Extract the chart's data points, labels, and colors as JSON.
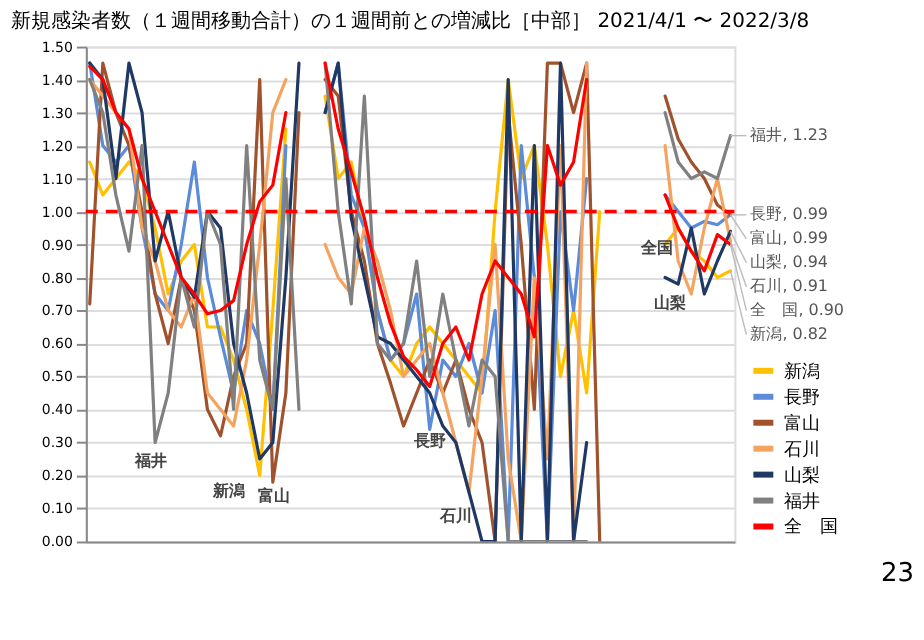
{
  "chart_data": {
    "type": "line",
    "title": "新規感染者数（１週間移動合計）の１週間前との増減比［中部］ 2021/4/1 〜 2022/3/8",
    "categories": [
      null,
      null,
      null,
      null,
      null,
      null,
      null,
      null,
      null,
      null,
      null,
      null,
      null,
      null,
      null,
      null,
      null,
      null,
      null,
      null,
      null,
      null,
      null,
      null,
      null,
      null,
      null,
      null,
      null,
      null,
      null,
      null,
      null,
      null,
      null,
      null,
      null,
      null,
      null,
      null,
      null,
      null,
      null,
      null,
      null,
      null,
      null,
      null,
      null,
      null
    ],
    "ylim": [
      0,
      1.5
    ],
    "yticks": [
      {
        "value": 0,
        "label": "0.00"
      },
      {
        "value": 0.1,
        "label": "0.10"
      },
      {
        "value": 0.2,
        "label": "0.20"
      },
      {
        "value": 0.3,
        "label": "0.30"
      },
      {
        "value": 0.4,
        "label": "0.40"
      },
      {
        "value": 0.5,
        "label": "0.50"
      },
      {
        "value": 0.6,
        "label": "0.60"
      },
      {
        "value": 0.7,
        "label": "0.70"
      },
      {
        "value": 0.8,
        "label": "0.80"
      },
      {
        "value": 0.9,
        "label": "0.90"
      },
      {
        "value": 1.0,
        "label": "1.00"
      },
      {
        "value": 1.1,
        "label": "1.10"
      },
      {
        "value": 1.2,
        "label": "1.20"
      },
      {
        "value": 1.3,
        "label": "1.30"
      },
      {
        "value": 1.4,
        "label": "1.40"
      },
      {
        "value": 1.5,
        "label": "1.50"
      }
    ],
    "grid": "y",
    "tick_labels": "y",
    "legend": "bottom right",
    "ref_lines": [
      {
        "axis": "y",
        "value": 1.0,
        "color": "#ff0000",
        "line_style": "dashed"
      }
    ],
    "series": [
      {
        "name": "新潟",
        "color": "#ffc000",
        "values": [
          1.15,
          1.05,
          1.1,
          1.15,
          1.1,
          0.95,
          0.75,
          0.85,
          0.9,
          0.65,
          0.65,
          0.55,
          0.4,
          0.2,
          0.7,
          1.25,
          null,
          null,
          1.35,
          1.1,
          1.15,
          0.95,
          0.7,
          0.55,
          0.5,
          0.6,
          0.65,
          0.6,
          0.55,
          0.5,
          0.45,
          1.0,
          1.4,
          1.1,
          1.2,
          0.9,
          0.5,
          0.7,
          0.45,
          1.0,
          null,
          null,
          null,
          null,
          0.9,
          0.95,
          0.88,
          0.85,
          0.8,
          0.82
        ],
        "value_labels": [
          null,
          null,
          null,
          null,
          null,
          null,
          null,
          null,
          null,
          null,
          null,
          null,
          null,
          null,
          null,
          null,
          null,
          null,
          null,
          null,
          null,
          null,
          null,
          null,
          null,
          null,
          null,
          null,
          null,
          null,
          null,
          null,
          null,
          null,
          null,
          null,
          null,
          null,
          null,
          null,
          null,
          null,
          null,
          null,
          null,
          null,
          null,
          null,
          null,
          "新潟, 0.82"
        ]
      },
      {
        "name": "長野",
        "color": "#5b8bd9",
        "values": [
          1.45,
          1.2,
          1.15,
          1.2,
          0.95,
          0.75,
          0.7,
          0.9,
          1.15,
          0.8,
          0.62,
          0.45,
          0.7,
          0.6,
          0.4,
          1.2,
          null,
          null,
          1.3,
          1.45,
          1.05,
          0.95,
          0.7,
          0.55,
          0.6,
          0.75,
          0.34,
          0.55,
          0.5,
          0.6,
          0.45,
          0.7,
          0,
          1.2,
          0.8,
          0,
          1.0,
          0.7,
          1.1,
          null,
          null,
          null,
          null,
          null,
          1.05,
          1.0,
          0.95,
          0.97,
          0.96,
          0.99
        ],
        "value_labels": [
          null,
          null,
          null,
          null,
          null,
          null,
          null,
          null,
          null,
          null,
          null,
          null,
          null,
          null,
          null,
          null,
          null,
          null,
          null,
          null,
          null,
          null,
          null,
          null,
          null,
          null,
          null,
          null,
          null,
          null,
          null,
          null,
          null,
          null,
          null,
          null,
          null,
          null,
          null,
          null,
          null,
          null,
          null,
          null,
          null,
          null,
          null,
          null,
          null,
          "長野, 0.99"
        ]
      },
      {
        "name": "富山",
        "color": "#a0522d",
        "values": [
          0.72,
          1.45,
          1.3,
          1.2,
          1.0,
          0.75,
          0.6,
          0.8,
          0.7,
          0.4,
          0.32,
          0.5,
          0.6,
          1.4,
          0.18,
          0.45,
          1.3,
          null,
          1.4,
          1.35,
          1.0,
          0.85,
          0.6,
          0.48,
          0.35,
          0.45,
          0.55,
          0.45,
          0.55,
          0.4,
          0.3,
          0,
          1.3,
          0.9,
          0.4,
          1.45,
          1.45,
          1.3,
          1.45,
          0,
          null,
          null,
          null,
          null,
          1.35,
          1.22,
          1.15,
          1.1,
          1.02,
          0.99
        ],
        "value_labels": [
          null,
          null,
          null,
          null,
          null,
          null,
          null,
          null,
          null,
          null,
          null,
          null,
          null,
          null,
          null,
          null,
          null,
          null,
          null,
          null,
          null,
          null,
          null,
          null,
          null,
          null,
          null,
          null,
          null,
          null,
          null,
          null,
          null,
          null,
          null,
          null,
          null,
          null,
          null,
          null,
          null,
          null,
          null,
          null,
          null,
          null,
          null,
          null,
          null,
          "富山, 0.99"
        ]
      },
      {
        "name": "石川",
        "color": "#f4a460",
        "values": [
          1.4,
          1.35,
          1.3,
          1.25,
          0.95,
          0.85,
          0.7,
          0.65,
          0.75,
          0.45,
          0.4,
          0.35,
          0.55,
          0.9,
          1.3,
          1.4,
          null,
          null,
          0.9,
          0.8,
          0.75,
          0.95,
          0.85,
          0.7,
          0.5,
          0.55,
          0.6,
          0.45,
          0.3,
          0.15,
          0.5,
          0.9,
          0.25,
          0,
          0.8,
          0.25,
          1.2,
          0,
          1.45,
          null,
          null,
          null,
          null,
          null,
          1.2,
          0.85,
          0.75,
          0.95,
          1.1,
          0.91
        ],
        "value_labels": [
          null,
          null,
          null,
          null,
          null,
          null,
          null,
          null,
          null,
          null,
          null,
          null,
          null,
          null,
          null,
          null,
          null,
          null,
          null,
          null,
          null,
          null,
          null,
          null,
          null,
          null,
          null,
          null,
          null,
          null,
          null,
          null,
          null,
          null,
          null,
          null,
          null,
          null,
          null,
          null,
          null,
          null,
          null,
          null,
          null,
          null,
          null,
          null,
          null,
          "石川, 0.91"
        ]
      },
      {
        "name": "山梨",
        "color": "#1f3864",
        "values": [
          1.45,
          1.4,
          1.1,
          1.45,
          1.3,
          0.85,
          1.0,
          0.8,
          0.74,
          1.0,
          0.95,
          0.6,
          0.45,
          0.25,
          0.3,
          0.8,
          1.45,
          null,
          1.3,
          1.45,
          0.98,
          0.8,
          0.62,
          0.6,
          0.55,
          0.5,
          0.45,
          0.35,
          0.3,
          0.15,
          0,
          0,
          1.4,
          0,
          1.2,
          0,
          1.45,
          0,
          0.3,
          null,
          null,
          null,
          null,
          null,
          0.8,
          0.78,
          0.95,
          0.75,
          0.85,
          0.94
        ],
        "value_labels": [
          null,
          null,
          null,
          null,
          null,
          null,
          null,
          null,
          null,
          null,
          null,
          null,
          null,
          null,
          null,
          null,
          null,
          null,
          null,
          null,
          null,
          null,
          null,
          null,
          null,
          null,
          null,
          null,
          null,
          null,
          null,
          null,
          null,
          null,
          null,
          null,
          null,
          null,
          null,
          null,
          null,
          null,
          null,
          null,
          null,
          null,
          null,
          null,
          null,
          "山梨, 0.94"
        ]
      },
      {
        "name": "福井",
        "color": "#808080",
        "values": [
          1.4,
          1.3,
          1.05,
          0.88,
          1.2,
          0.3,
          0.45,
          0.8,
          0.65,
          1.0,
          0.9,
          0.4,
          1.2,
          0.55,
          0.4,
          1.1,
          0.4,
          null,
          1.45,
          1.0,
          0.72,
          1.35,
          0.6,
          0.55,
          0.6,
          0.85,
          0.5,
          0.75,
          0.55,
          0.35,
          0.55,
          0.5,
          0,
          0,
          0,
          0,
          0,
          0,
          0,
          null,
          null,
          null,
          null,
          null,
          1.3,
          1.15,
          1.1,
          1.12,
          1.1,
          1.23
        ],
        "value_labels": [
          null,
          null,
          null,
          null,
          null,
          null,
          null,
          null,
          null,
          null,
          null,
          null,
          null,
          null,
          null,
          null,
          null,
          null,
          null,
          null,
          null,
          null,
          null,
          null,
          null,
          null,
          null,
          null,
          null,
          null,
          null,
          null,
          null,
          null,
          null,
          null,
          null,
          null,
          null,
          null,
          null,
          null,
          null,
          null,
          null,
          null,
          null,
          null,
          null,
          "福井, 1.23"
        ]
      },
      {
        "name": "全　国",
        "color": "#ff0000",
        "values": [
          1.44,
          1.4,
          1.3,
          1.25,
          1.1,
          1.0,
          0.9,
          0.8,
          0.75,
          0.69,
          0.7,
          0.73,
          0.9,
          1.03,
          1.08,
          1.3,
          null,
          null,
          1.45,
          1.25,
          1.12,
          0.98,
          0.8,
          0.66,
          0.56,
          0.52,
          0.47,
          0.6,
          0.65,
          0.55,
          0.75,
          0.85,
          0.8,
          0.75,
          0.62,
          1.2,
          1.08,
          1.15,
          1.4,
          null,
          null,
          null,
          null,
          null,
          1.05,
          0.95,
          0.88,
          0.82,
          0.93,
          0.9
        ],
        "value_labels": [
          null,
          null,
          null,
          null,
          null,
          null,
          null,
          null,
          null,
          null,
          null,
          null,
          null,
          null,
          null,
          null,
          null,
          null,
          null,
          null,
          null,
          null,
          null,
          null,
          null,
          null,
          null,
          null,
          null,
          null,
          null,
          null,
          null,
          null,
          null,
          null,
          null,
          null,
          null,
          null,
          null,
          null,
          null,
          null,
          null,
          null,
          null,
          null,
          null,
          "全　国, 0.90"
        ]
      }
    ],
    "annotations": [
      "福井",
      "新潟",
      "富山",
      "長野",
      "石川",
      "全国",
      "山梨",
      "23"
    ]
  }
}
